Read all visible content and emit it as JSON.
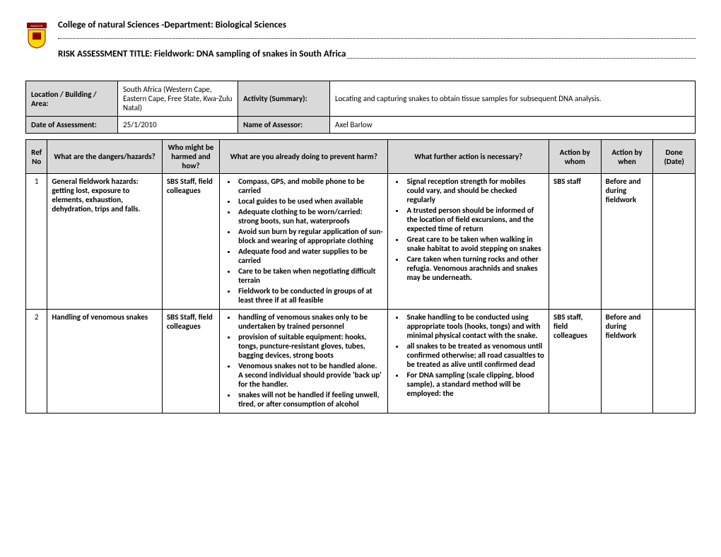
{
  "header": {
    "college_line": "College of natural Sciences -Department:   Biological Sciences",
    "title_prefix": "RISK ASSESSMENT TITLE:  Fieldwork: DNA sampling of snakes in South Africa"
  },
  "info": {
    "location_label": "Location / Building / Area:",
    "location_value": "South Africa (Western Cape, Eastern Cape, Free State, Kwa-Zulu Natal)",
    "activity_label": "Activity (Summary):",
    "activity_value": "Locating and capturing snakes to obtain tissue samples for subsequent DNA analysis.",
    "date_label": "Date of Assessment:",
    "date_value": "25/1/2010",
    "assessor_label": "Name of Assessor:",
    "assessor_value": "Axel Barlow"
  },
  "columns": {
    "ref": "Ref No",
    "hazard": "What are the dangers/hazards?",
    "who": "Who might be harmed and how?",
    "prevent": "What are you already doing to prevent harm?",
    "further": "What further action is necessary?",
    "whom": "Action by whom",
    "when": "Action by when",
    "done": "Done (Date)"
  },
  "rows": [
    {
      "ref": "1",
      "hazard": "General fieldwork hazards: getting lost, exposure to elements, exhaustion, dehydration, trips and falls.",
      "who": "SBS Staff, field colleagues",
      "prevent": [
        "Compass, GPS, and mobile phone to be carried",
        "Local guides to be used when available",
        "Adequate clothing to be worn/carried: strong boots, sun hat, waterproofs",
        "Avoid sun burn by regular application of sun-block and wearing of appropriate clothing",
        "Adequate food and water supplies to be carried",
        "Care to be taken when negotiating difficult terrain",
        "Fieldwork to be conducted in groups of at least three if at all feasible"
      ],
      "further": [
        "Signal reception strength for mobiles could vary, and should be checked regularly",
        "A trusted person should be informed of the location of field excursions, and the expected time of return",
        "Great care to be taken when walking in snake habitat to avoid stepping on snakes",
        "Care taken when turning rocks and other refugia. Venomous arachnids and snakes may be underneath."
      ],
      "whom": "SBS staff",
      "when": "Before and during fieldwork",
      "done": ""
    },
    {
      "ref": "2",
      "hazard": "Handling of venomous snakes",
      "who": "SBS Staff, field colleagues",
      "prevent": [
        "handling of venomous snakes only to be undertaken by trained personnel",
        "provision of suitable equipment: hooks, tongs, puncture-resistant gloves, tubes, bagging devices, strong boots",
        "Venomous snakes not to be handled alone. A second individual should provide 'back up' for the handler.",
        "snakes will not be handled if feeling unwell, tired, or after consumption of alcohol"
      ],
      "further": [
        "Snake handling to be conducted using appropriate tools (hooks, tongs) and with minimal physical contact with the snake.",
        "all snakes to be treated as venomous until confirmed otherwise; all road casualties to be treated as alive until confirmed dead",
        "For DNA sampling (scale clipping, blood sample), a standard method will be employed: the"
      ],
      "whom": "SBS staff, field colleagues",
      "when": "Before and during fieldwork",
      "done": ""
    }
  ]
}
